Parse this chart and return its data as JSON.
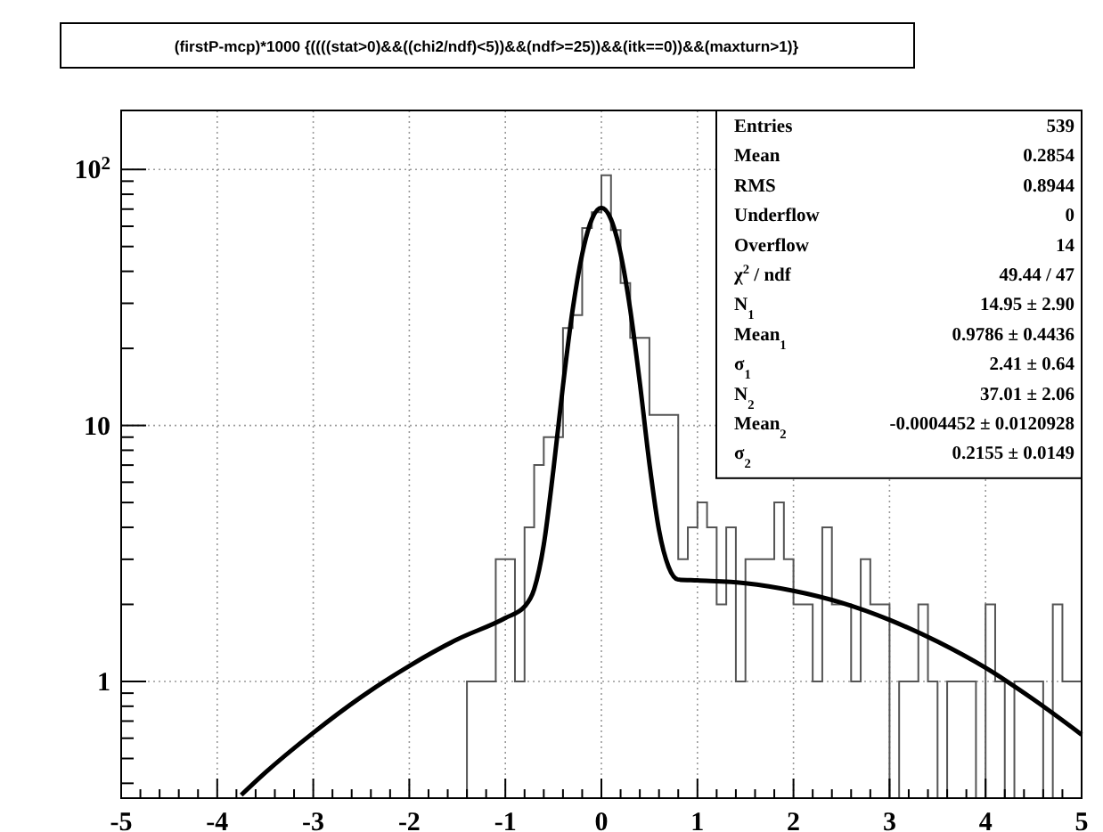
{
  "chart_data": {
    "type": "histogram",
    "title": "(firstP-mcp)*1000 {((((stat>0)&&((chi2/ndf)<5))&&(ndf>=25))&&(itk==0))&&(maxturn>1)}",
    "bins": [
      -5,
      -4.9,
      -4.8,
      -4.7,
      -4.6,
      -4.5,
      -4.4,
      -4.3,
      -4.2,
      -4.1,
      -4,
      -3.9,
      -3.8,
      -3.7,
      -3.6,
      -3.5,
      -3.4,
      -3.3,
      -3.2,
      -3.1,
      -3,
      -2.9,
      -2.8,
      -2.7,
      -2.6,
      -2.5,
      -2.4,
      -2.3,
      -2.2,
      -2.1,
      -2,
      -1.9,
      -1.8,
      -1.7,
      -1.6,
      -1.5,
      -1.4,
      -1.3,
      -1.2,
      -1.1,
      -1,
      -0.9,
      -0.8,
      -0.7,
      -0.6,
      -0.5,
      -0.4,
      -0.3,
      -0.2,
      -0.1,
      0,
      0.1,
      0.2,
      0.3,
      0.4,
      0.5,
      0.6,
      0.7,
      0.8,
      0.9,
      1,
      1.1,
      1.2,
      1.3,
      1.4,
      1.5,
      1.6,
      1.7,
      1.8,
      1.9,
      2,
      2.1,
      2.2,
      2.3,
      2.4,
      2.5,
      2.6,
      2.7,
      2.8,
      2.9,
      3,
      3.1,
      3.2,
      3.3,
      3.4,
      3.5,
      3.6,
      3.7,
      3.8,
      3.9,
      4,
      4.1,
      4.2,
      4.3,
      4.4,
      4.5,
      4.6,
      4.7,
      4.8,
      4.9,
      5
    ],
    "values": [
      null,
      null,
      null,
      null,
      null,
      null,
      null,
      null,
      null,
      null,
      null,
      null,
      null,
      null,
      null,
      null,
      null,
      null,
      null,
      null,
      null,
      null,
      null,
      null,
      null,
      null,
      null,
      null,
      null,
      null,
      null,
      null,
      null,
      null,
      null,
      null,
      1,
      1,
      1,
      3,
      3,
      1,
      4,
      7,
      9,
      9,
      24,
      27,
      59,
      68,
      95,
      58,
      36,
      22,
      22,
      11,
      11,
      11,
      3,
      4,
      5,
      4,
      2,
      4,
      1,
      3,
      3,
      3,
      5,
      3,
      2,
      2,
      1,
      4,
      2,
      2,
      1,
      3,
      2,
      2,
      null,
      1,
      1,
      2,
      1,
      null,
      1,
      1,
      1,
      null,
      2,
      1,
      null,
      1,
      1,
      1,
      null,
      2,
      1,
      1
    ],
    "color": "#555555",
    "series": [
      {
        "type": "line",
        "color": "#000000",
        "x": [
          -3.75,
          -3.5,
          -3,
          -2.5,
          -2,
          -1.5,
          -1,
          -0.8,
          -0.7,
          -0.6,
          -0.5,
          -0.4,
          -0.3,
          -0.2,
          -0.1,
          0,
          0.1,
          0.2,
          0.3,
          0.4,
          0.5,
          0.6,
          0.7,
          0.8,
          1,
          1.5,
          2,
          2.5,
          3,
          3.5,
          4,
          4.5,
          5
        ],
        "values": [
          0.36,
          0.44,
          0.63,
          0.87,
          1.15,
          1.46,
          1.77,
          1.96,
          2.29,
          3.42,
          6.7,
          14.3,
          28.2,
          46.7,
          63.8,
          70.8,
          63.8,
          46.9,
          28.4,
          14.7,
          7.1,
          3.9,
          2.8,
          2.5,
          2.48,
          2.42,
          2.26,
          2.03,
          1.74,
          1.43,
          1.13,
          0.85,
          0.62
        ]
      }
    ],
    "xlim": [
      -5,
      5
    ],
    "xticks": [
      -5,
      -4,
      -3,
      -2,
      -1,
      0,
      1,
      2,
      3,
      4,
      5
    ],
    "ylim": [
      0.35,
      170
    ],
    "log": true,
    "yticks": [
      {
        "value": 1,
        "label": "1"
      },
      {
        "value": 10,
        "label": "10"
      },
      {
        "value": 100,
        "label": "10$^{2}$"
      }
    ],
    "grid": true,
    "annotations": [
      "Entries",
      "539",
      "Mean",
      "0.2854",
      "RMS",
      "0.8944",
      "Underflow",
      "0",
      "Overflow",
      "14",
      "χ$^{2}$ / ndf",
      "49.44 / 47",
      "N$_{1}$",
      "14.95 ± 2.90",
      "Mean$_{1}$",
      "0.9786 ± 0.4436",
      "σ$_{1}$",
      "2.41 ± 0.64",
      "N$_{2}$",
      "37.01 ± 2.06",
      "Mean$_{2}$",
      "-0.0004452 ± 0.0120928",
      "σ$_{2}$",
      "0.2155 ± 0.0149"
    ]
  }
}
